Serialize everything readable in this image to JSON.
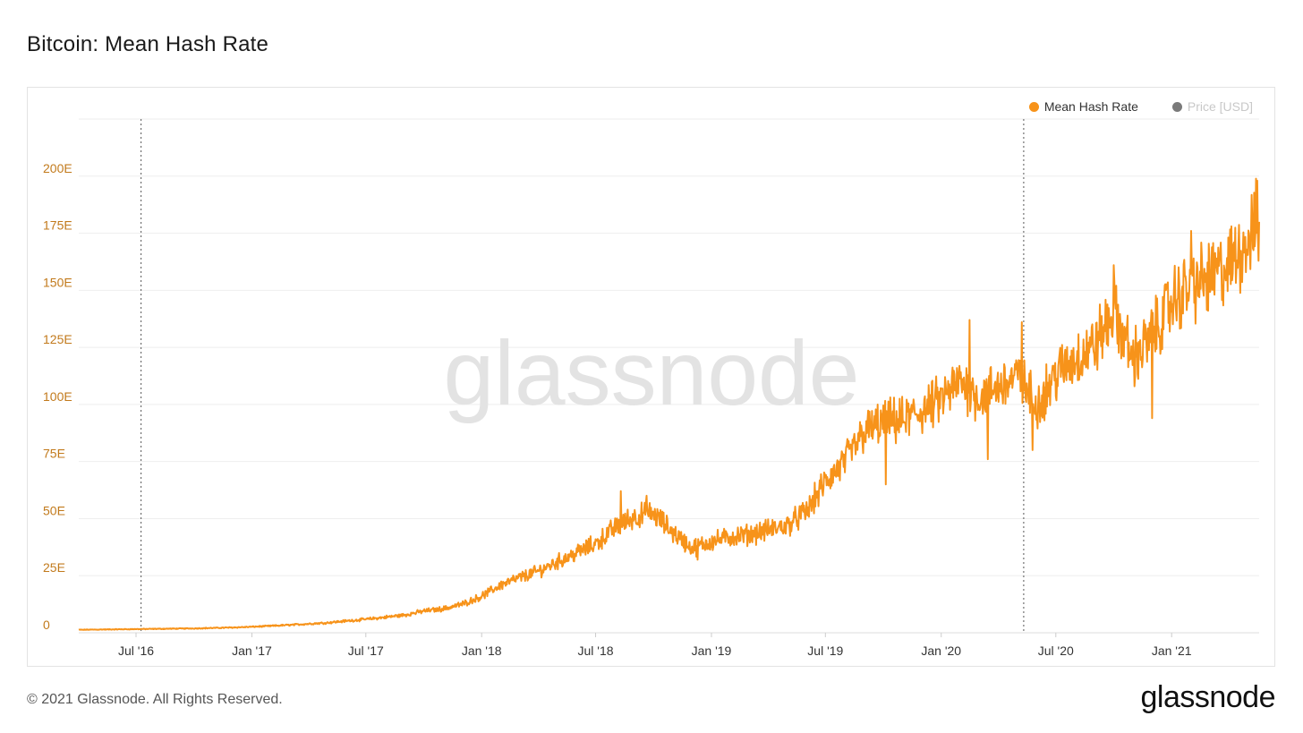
{
  "page": {
    "title": "Bitcoin: Mean Hash Rate",
    "copyright": "© 2021 Glassnode. All Rights Reserved.",
    "logo_text": "glassnode",
    "watermark_text": "glassnode"
  },
  "legend": [
    {
      "label": "Mean Hash Rate",
      "color": "#f7931a",
      "active": true
    },
    {
      "label": "Price [USD]",
      "color": "#7a7a7a",
      "active": false
    }
  ],
  "chart_data": {
    "type": "line",
    "x_axis": {
      "type": "date",
      "range": [
        "2016-04-01",
        "2021-05-20"
      ],
      "ticks": [
        {
          "label": "Jul '16",
          "date": "2016-07-01"
        },
        {
          "label": "Jan '17",
          "date": "2017-01-01"
        },
        {
          "label": "Jul '17",
          "date": "2017-07-01"
        },
        {
          "label": "Jan '18",
          "date": "2018-01-01"
        },
        {
          "label": "Jul '18",
          "date": "2018-07-01"
        },
        {
          "label": "Jan '19",
          "date": "2019-01-01"
        },
        {
          "label": "Jul '19",
          "date": "2019-07-01"
        },
        {
          "label": "Jan '20",
          "date": "2020-01-01"
        },
        {
          "label": "Jul '20",
          "date": "2020-07-01"
        },
        {
          "label": "Jan '21",
          "date": "2021-01-01"
        }
      ]
    },
    "y_axis": {
      "range": [
        0,
        225
      ],
      "ticks": [
        {
          "label": "0",
          "value": 0
        },
        {
          "label": "25E",
          "value": 25
        },
        {
          "label": "50E",
          "value": 50
        },
        {
          "label": "75E",
          "value": 75
        },
        {
          "label": "100E",
          "value": 100
        },
        {
          "label": "125E",
          "value": 125
        },
        {
          "label": "150E",
          "value": 150
        },
        {
          "label": "175E",
          "value": 175
        },
        {
          "label": "200E",
          "value": 200
        }
      ]
    },
    "grid": true,
    "legend_position": "top-right",
    "events": [
      {
        "date": "2016-07-09"
      },
      {
        "date": "2020-05-11"
      }
    ],
    "series": [
      {
        "name": "Mean Hash Rate",
        "color": "#f7931a",
        "points": [
          [
            "2016-04-01",
            1.3
          ],
          [
            "2016-05-01",
            1.4
          ],
          [
            "2016-06-01",
            1.5
          ],
          [
            "2016-07-01",
            1.6
          ],
          [
            "2016-08-01",
            1.7
          ],
          [
            "2016-09-01",
            1.8
          ],
          [
            "2016-10-01",
            1.9
          ],
          [
            "2016-11-01",
            2.1
          ],
          [
            "2016-12-01",
            2.3
          ],
          [
            "2017-01-01",
            2.6
          ],
          [
            "2017-02-01",
            3.0
          ],
          [
            "2017-03-01",
            3.4
          ],
          [
            "2017-04-01",
            3.9
          ],
          [
            "2017-05-01",
            4.4
          ],
          [
            "2017-06-01",
            5.2
          ],
          [
            "2017-07-01",
            5.9
          ],
          [
            "2017-08-01",
            6.8
          ],
          [
            "2017-09-01",
            7.8
          ],
          [
            "2017-10-01",
            9.5
          ],
          [
            "2017-11-01",
            10.5
          ],
          [
            "2017-12-01",
            12.5
          ],
          [
            "2018-01-01",
            16.0
          ],
          [
            "2018-02-01",
            21.0
          ],
          [
            "2018-03-01",
            24.0
          ],
          [
            "2018-04-01",
            27.0
          ],
          [
            "2018-05-01",
            31.0
          ],
          [
            "2018-06-01",
            35.0
          ],
          [
            "2018-07-01",
            39.0
          ],
          [
            "2018-08-01",
            46.0
          ],
          [
            "2018-09-01",
            51.0
          ],
          [
            "2018-10-01",
            52.0
          ],
          [
            "2018-11-01",
            44.0
          ],
          [
            "2018-12-01",
            37.0
          ],
          [
            "2019-01-01",
            40.0
          ],
          [
            "2019-02-01",
            42.0
          ],
          [
            "2019-03-01",
            43.0
          ],
          [
            "2019-04-01",
            45.0
          ],
          [
            "2019-05-01",
            47.0
          ],
          [
            "2019-06-01",
            53.0
          ],
          [
            "2019-07-01",
            66.0
          ],
          [
            "2019-08-01",
            75.0
          ],
          [
            "2019-09-01",
            88.0
          ],
          [
            "2019-10-01",
            92.0
          ],
          [
            "2019-11-01",
            93.0
          ],
          [
            "2019-12-01",
            97.0
          ],
          [
            "2020-01-01",
            102.0
          ],
          [
            "2020-02-01",
            110.0
          ],
          [
            "2020-03-01",
            103.0
          ],
          [
            "2020-04-01",
            108.0
          ],
          [
            "2020-05-01",
            112.0
          ],
          [
            "2020-06-01",
            100.0
          ],
          [
            "2020-07-01",
            113.0
          ],
          [
            "2020-08-01",
            120.0
          ],
          [
            "2020-09-01",
            126.0
          ],
          [
            "2020-10-01",
            140.0
          ],
          [
            "2020-11-01",
            120.0
          ],
          [
            "2020-12-01",
            130.0
          ],
          [
            "2021-01-01",
            145.0
          ],
          [
            "2021-02-01",
            152.0
          ],
          [
            "2021-03-01",
            155.0
          ],
          [
            "2021-04-01",
            160.0
          ],
          [
            "2021-05-01",
            172.0
          ],
          [
            "2021-05-20",
            180.0
          ]
        ],
        "annotated_points": [
          [
            "2018-08-10",
            62
          ],
          [
            "2018-09-20",
            60
          ],
          [
            "2018-12-10",
            32
          ],
          [
            "2019-10-05",
            65
          ],
          [
            "2020-02-15",
            137
          ],
          [
            "2020-03-15",
            76
          ],
          [
            "2020-05-08",
            136
          ],
          [
            "2020-05-25",
            80
          ],
          [
            "2020-10-01",
            161
          ],
          [
            "2020-12-01",
            94
          ],
          [
            "2021-02-01",
            176
          ],
          [
            "2021-05-17",
            198
          ]
        ]
      }
    ]
  }
}
